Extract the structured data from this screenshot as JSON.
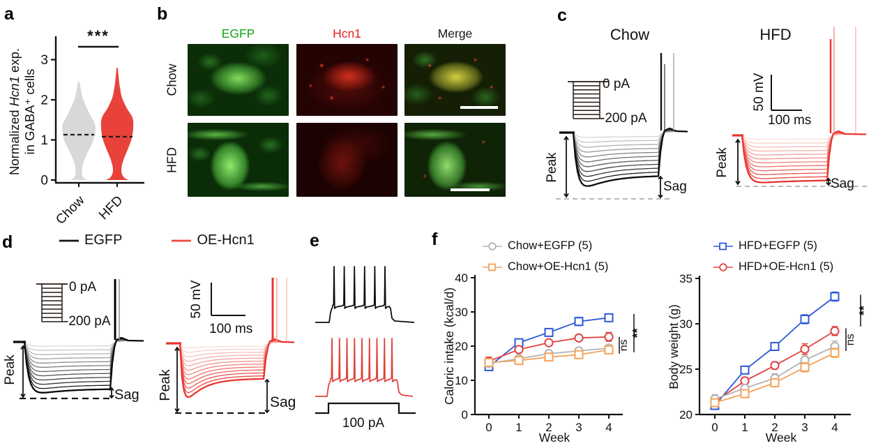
{
  "panels": {
    "a": "a",
    "b": "b",
    "c": "c",
    "d": "d",
    "e": "e",
    "f": "f"
  },
  "panel_a": {
    "sig": "***",
    "ylabel": {
      "pre": "Normalized ",
      "italic": "Hcn1",
      "post": " exp.",
      "line2": "in GABA⁺ cells"
    }
  },
  "panel_b": {
    "columns": [
      {
        "text": "EGFP",
        "color": "#17a317"
      },
      {
        "text": "Hcn1",
        "color": "#e32020"
      },
      {
        "text": "Merge",
        "color": "#1a1a1a"
      }
    ],
    "rows": [
      "Chow",
      "HFD"
    ]
  },
  "panel_c": {
    "titles": [
      "Chow",
      "HFD"
    ],
    "inset": {
      "top": "0 pA",
      "bottom": "-200 pA"
    },
    "scale": {
      "v": "50 mV",
      "h": "100 ms"
    },
    "peak": "Peak",
    "sag": "Sag",
    "trace_colors": {
      "chow": [
        "#d6d6d6",
        "#0b0b0b"
      ],
      "hfd": [
        "#fbded9",
        "#e8352e"
      ]
    }
  },
  "panel_d": {
    "legend": [
      {
        "label": "EGFP",
        "color": "#141414"
      },
      {
        "label": "OE-Hcn1",
        "color": "#e8463f"
      }
    ],
    "inset": {
      "top": "0 pA",
      "bottom": "-200 pA"
    },
    "scale": {
      "v": "50 mV",
      "h": "100 ms"
    },
    "peak": "Peak",
    "sag": "Sag"
  },
  "panel_e": {
    "pulse_label": "100 pA",
    "colors": [
      "#0d0d0d",
      "#e0433b"
    ]
  },
  "chart_data": [
    {
      "id": "hcn1-violin",
      "type": "violin",
      "categories": [
        "Chow",
        "HFD"
      ],
      "ylabel": "Normalized Hcn1 exp. in GABA⁺ cells",
      "ylim": [
        0,
        3.3
      ],
      "yticks": [
        0,
        1,
        2,
        3
      ],
      "medians": [
        1.13,
        1.08
      ],
      "significance": "***",
      "colors": [
        "#d8d8d8",
        "#e8423b"
      ],
      "profiles": [
        [
          [
            0,
            12
          ],
          [
            0.06,
            7
          ],
          [
            0.18,
            4.5
          ],
          [
            0.4,
            6
          ],
          [
            0.7,
            13
          ],
          [
            0.95,
            20
          ],
          [
            1.2,
            23.5
          ],
          [
            1.4,
            23
          ],
          [
            1.6,
            17
          ],
          [
            1.85,
            10
          ],
          [
            2.05,
            5.5
          ],
          [
            2.25,
            3
          ],
          [
            2.45,
            1
          ]
        ],
        [
          [
            0,
            16
          ],
          [
            0.08,
            9
          ],
          [
            0.25,
            6
          ],
          [
            0.5,
            9
          ],
          [
            0.8,
            16
          ],
          [
            1.05,
            21
          ],
          [
            1.3,
            23
          ],
          [
            1.55,
            22
          ],
          [
            1.8,
            13.5
          ],
          [
            2.05,
            7
          ],
          [
            2.3,
            4
          ],
          [
            2.55,
            2.2
          ],
          [
            2.8,
            0.8
          ]
        ]
      ]
    },
    {
      "id": "caloric-intake",
      "type": "line",
      "xlabel": "Week",
      "ylabel": "Caloric intake (kcal/d)",
      "x": [
        0,
        1,
        2,
        3,
        4
      ],
      "ylim": [
        0,
        40
      ],
      "yticks": [
        0,
        10,
        20,
        30,
        40
      ],
      "series": [
        {
          "name": "HFD+EGFP (5)",
          "marker": "square",
          "color": "#2e59d8",
          "values": [
            14.0,
            21.0,
            24.0,
            27.2,
            28.3
          ],
          "err": [
            1.0,
            1.0,
            0.9,
            1.2,
            0.9
          ]
        },
        {
          "name": "HFD+OE-Hcn1 (5)",
          "marker": "circle",
          "color": "#e04343",
          "values": [
            15.6,
            19.0,
            21.0,
            22.4,
            22.7
          ],
          "err": [
            1.2,
            0.8,
            0.8,
            0.7,
            1.3
          ]
        },
        {
          "name": "Chow+EGFP (5)",
          "marker": "circle",
          "color": "#b3b3b3",
          "values": [
            15.0,
            16.3,
            17.8,
            18.6,
            19.4
          ],
          "err": [
            0.8,
            0.7,
            1.0,
            0.8,
            1.0
          ]
        },
        {
          "name": "Chow+OE-Hcn1 (5)",
          "marker": "square",
          "color": "#f4a259",
          "values": [
            15.2,
            15.8,
            16.8,
            17.5,
            18.9
          ],
          "err": [
            0.8,
            0.7,
            0.9,
            0.8,
            0.8
          ]
        }
      ],
      "legend_items": [
        {
          "label": "Chow+EGFP (5)",
          "color": "#b3b3b3",
          "marker": "circle"
        },
        {
          "label": "Chow+OE-Hcn1 (5)",
          "color": "#f4a259",
          "marker": "square"
        }
      ],
      "annotations": [
        {
          "text": "ns",
          "span": [
            17.8,
            22.7
          ],
          "xoff": 15
        },
        {
          "text": "**",
          "span": [
            18.2,
            29.4
          ],
          "xoff": 36
        }
      ]
    },
    {
      "id": "body-weight",
      "type": "line",
      "xlabel": "Week",
      "ylabel": "Body weight (g)",
      "x": [
        0,
        1,
        2,
        3,
        4
      ],
      "ylim": [
        20,
        35
      ],
      "yticks": [
        20,
        25,
        30,
        35
      ],
      "series": [
        {
          "name": "HFD+EGFP (5)",
          "marker": "square",
          "color": "#2e59d8",
          "values": [
            21.0,
            24.9,
            27.5,
            30.5,
            33.0
          ],
          "err": [
            0.4,
            0.4,
            0.4,
            0.5,
            0.5
          ]
        },
        {
          "name": "HFD+OE-Hcn1 (5)",
          "marker": "circle",
          "color": "#e04343",
          "values": [
            21.4,
            23.7,
            25.4,
            27.2,
            29.2
          ],
          "err": [
            0.3,
            0.4,
            0.4,
            0.6,
            0.5
          ]
        },
        {
          "name": "Chow+EGFP (5)",
          "marker": "circle",
          "color": "#b3b3b3",
          "values": [
            21.7,
            22.9,
            24.0,
            26.0,
            27.5
          ],
          "err": [
            0.5,
            0.4,
            0.5,
            0.4,
            0.6
          ]
        },
        {
          "name": "Chow+OE-Hcn1 (5)",
          "marker": "square",
          "color": "#f4a259",
          "values": [
            21.3,
            22.3,
            23.5,
            25.2,
            26.8
          ],
          "err": [
            0.3,
            0.4,
            0.4,
            0.5,
            0.5
          ]
        }
      ],
      "legend_items": [
        {
          "label": "HFD+EGFP (5)",
          "color": "#2e59d8",
          "marker": "square"
        },
        {
          "label": "HFD+OE-Hcn1 (5)",
          "color": "#e04343",
          "marker": "circle"
        }
      ],
      "annotations": [
        {
          "text": "ns",
          "span": [
            27.0,
            29.5
          ],
          "xoff": 16
        },
        {
          "text": "**",
          "span": [
            29.7,
            33.2
          ],
          "xoff": 37
        }
      ]
    }
  ]
}
